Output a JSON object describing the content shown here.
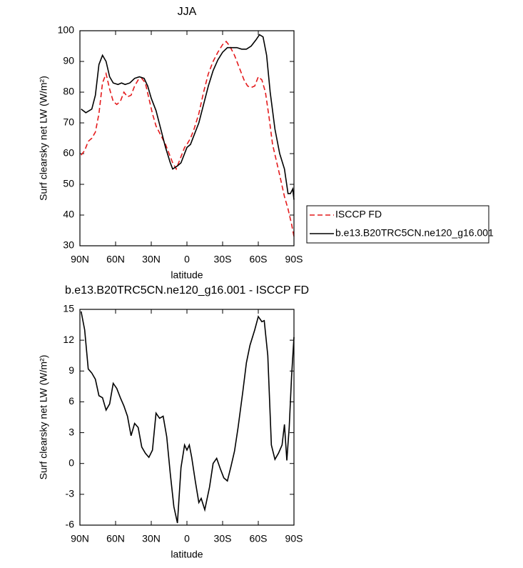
{
  "chart_data": [
    {
      "type": "line",
      "title": "JJA",
      "xlabel": "latitude",
      "ylabel": "Surf clearsky net LW (W/m²)",
      "xlim": [
        90,
        -90
      ],
      "xticks": [
        {
          "value": 90,
          "label": "90N"
        },
        {
          "value": 60,
          "label": "60N"
        },
        {
          "value": 30,
          "label": "30N"
        },
        0,
        {
          "value": -30,
          "label": "30S"
        },
        {
          "value": -60,
          "label": "60S"
        },
        {
          "value": -90,
          "label": "90S"
        }
      ],
      "ylim": [
        30,
        100
      ],
      "yticks": [
        30,
        40,
        50,
        60,
        70,
        80,
        90,
        100
      ],
      "legend": "outside-right",
      "series": [
        {
          "name": "ISCCP FD",
          "color": "#e41a1c",
          "dash": true,
          "x": [
            89,
            86,
            83,
            80,
            77,
            74,
            71,
            68,
            65,
            62,
            59,
            56,
            53,
            50,
            47,
            44,
            41,
            38,
            35,
            32,
            29,
            26,
            22,
            18,
            15,
            12,
            9,
            5,
            2,
            0,
            -3,
            -6,
            -10,
            -14,
            -18,
            -22,
            -26,
            -30,
            -33,
            -36,
            -40,
            -44,
            -48,
            -51,
            -54,
            -57,
            -60,
            -63,
            -66,
            -69,
            -72,
            -75,
            -78,
            -82,
            -85,
            -88,
            -90
          ],
          "values": [
            59.5,
            61,
            64,
            65,
            67,
            73,
            83,
            86,
            81,
            77,
            76,
            77,
            80,
            78.5,
            79,
            82,
            84,
            84.5,
            83,
            78,
            73,
            69,
            66,
            63,
            60,
            57,
            55,
            59,
            62,
            63,
            65,
            68,
            73,
            80,
            86,
            90,
            93,
            95.5,
            96.5,
            95,
            92,
            88,
            84,
            82,
            81.5,
            82,
            85,
            84,
            80,
            72,
            63,
            58,
            53,
            46,
            42,
            37,
            33
          ]
        },
        {
          "name": "b.e13.B20TRC5CN.ne120_g16.001",
          "color": "#000000",
          "dash": false,
          "x": [
            89,
            85,
            80,
            77,
            74,
            71,
            68,
            65,
            62,
            58,
            55,
            52,
            48,
            44,
            40,
            36,
            33,
            30,
            26,
            22,
            18,
            14,
            12,
            8,
            5,
            0,
            -3,
            -6,
            -10,
            -14,
            -18,
            -22,
            -26,
            -30,
            -34,
            -38,
            -42,
            -46,
            -50,
            -54,
            -58,
            -61,
            -64,
            -67,
            -70,
            -74,
            -78,
            -82,
            -85,
            -87,
            -89,
            -90
          ],
          "values": [
            74.5,
            73.3,
            74.5,
            79,
            89,
            92,
            90,
            85,
            83,
            82.5,
            83,
            82.5,
            83,
            84.5,
            85,
            84.5,
            82,
            78,
            74,
            68,
            62,
            57,
            55,
            56,
            57,
            62,
            63,
            66,
            70,
            76,
            82,
            87,
            90.5,
            93,
            94.5,
            94.5,
            94.5,
            94,
            94,
            95,
            97,
            98.7,
            98,
            92,
            80,
            68,
            60,
            55,
            47,
            47,
            48.5,
            45
          ]
        }
      ]
    },
    {
      "type": "line",
      "title": "b.e13.B20TRC5CN.ne120_g16.001 - ISCCP FD",
      "xlabel": "latitude",
      "ylabel": "Surf clearsky net LW (W/m²)",
      "xlim": [
        90,
        -90
      ],
      "xticks": [
        {
          "value": 90,
          "label": "90N"
        },
        {
          "value": 60,
          "label": "60N"
        },
        {
          "value": 30,
          "label": "30N"
        },
        0,
        {
          "value": -30,
          "label": "30S"
        },
        {
          "value": -60,
          "label": "60S"
        },
        {
          "value": -90,
          "label": "90S"
        }
      ],
      "ylim": [
        -6,
        15
      ],
      "yticks": [
        -6,
        -3,
        0,
        3,
        6,
        9,
        12,
        15
      ],
      "series": [
        {
          "color": "#000000",
          "dash": false,
          "x": [
            89,
            86,
            83,
            80,
            77,
            74,
            71,
            68,
            65,
            62,
            59,
            56,
            53,
            50,
            47,
            44,
            41,
            38,
            35,
            32,
            29,
            26,
            23,
            20,
            17,
            14,
            11,
            8,
            5,
            2,
            0,
            -2,
            -4,
            -7,
            -10,
            -12,
            -15,
            -19,
            -22,
            -25,
            -28,
            -31,
            -34,
            -37,
            -40,
            -43,
            -47,
            -50,
            -53,
            -57,
            -60,
            -63,
            -65,
            -68,
            -71,
            -74,
            -77,
            -80,
            -82,
            -84,
            -86,
            -88,
            -90
          ],
          "values": [
            14.8,
            13,
            9.2,
            8.8,
            8.2,
            6.6,
            6.4,
            5.2,
            5.8,
            7.8,
            7.3,
            6.4,
            5.6,
            4.6,
            2.7,
            3.9,
            3.5,
            1.6,
            1.0,
            0.6,
            1.3,
            4.9,
            4.4,
            4.6,
            2.6,
            -1,
            -4.2,
            -5.8,
            -0.4,
            1.8,
            1.3,
            1.8,
            0.6,
            -1.7,
            -3.8,
            -3.4,
            -4.5,
            -2.3,
            0,
            0.5,
            -0.5,
            -1.4,
            -1.7,
            -0.3,
            1.2,
            3.5,
            7,
            9.8,
            11.5,
            13,
            14.3,
            13.8,
            13.9,
            10.5,
            1.8,
            0.4,
            1.0,
            1.8,
            3.8,
            0.3,
            3.5,
            8.5,
            12.3
          ]
        }
      ]
    }
  ]
}
